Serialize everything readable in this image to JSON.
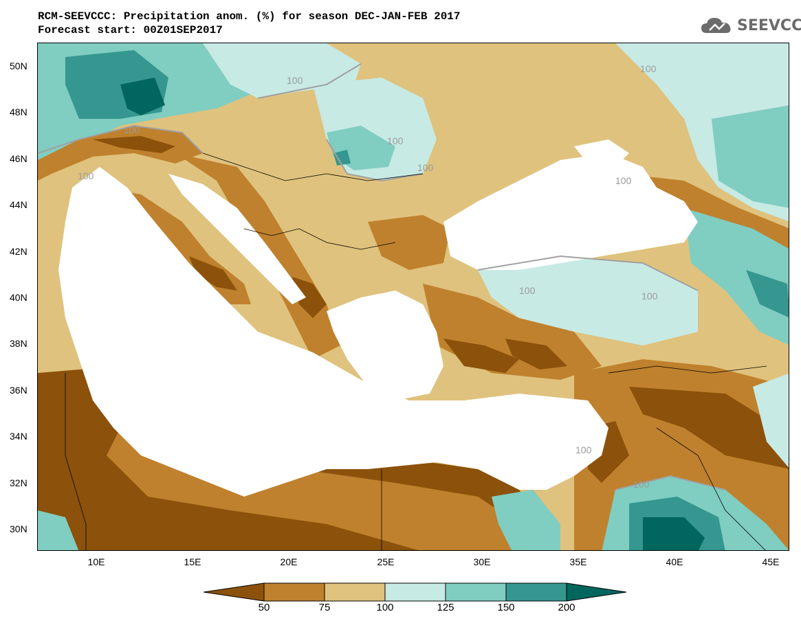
{
  "header": {
    "line1": "RCM-SEEVCCC: Precipitation anom. (%) for season DEC-JAN-FEB 2017",
    "line2": "Forecast start: 00Z01SEP2017"
  },
  "logo": {
    "text": "SEEVCCC",
    "icon": "cloud-icon"
  },
  "map": {
    "lat_labels": [
      "50N",
      "48N",
      "46N",
      "44N",
      "42N",
      "40N",
      "38N",
      "36N",
      "34N",
      "32N",
      "30N"
    ],
    "lon_labels": [
      "10E",
      "15E",
      "20E",
      "25E",
      "30E",
      "35E",
      "40E",
      "45E"
    ],
    "contour_labels": [
      "100",
      "100",
      "100",
      "100",
      "100",
      "100",
      "100",
      "100",
      "100",
      "100",
      "100"
    ]
  },
  "legend": {
    "labels": [
      "50",
      "75",
      "100",
      "125",
      "150",
      "200"
    ],
    "colors": {
      "lt50": "#8c510a",
      "50_75": "#bf812d",
      "75_100": "#dfc27d",
      "100_125": "#c7eae5",
      "125_150": "#80cdc1",
      "150_200": "#35978f",
      "gt200": "#01665e"
    }
  },
  "colors": {
    "land_none": "#ffffff",
    "contour": "#a0a0a0",
    "border": "#000000"
  }
}
